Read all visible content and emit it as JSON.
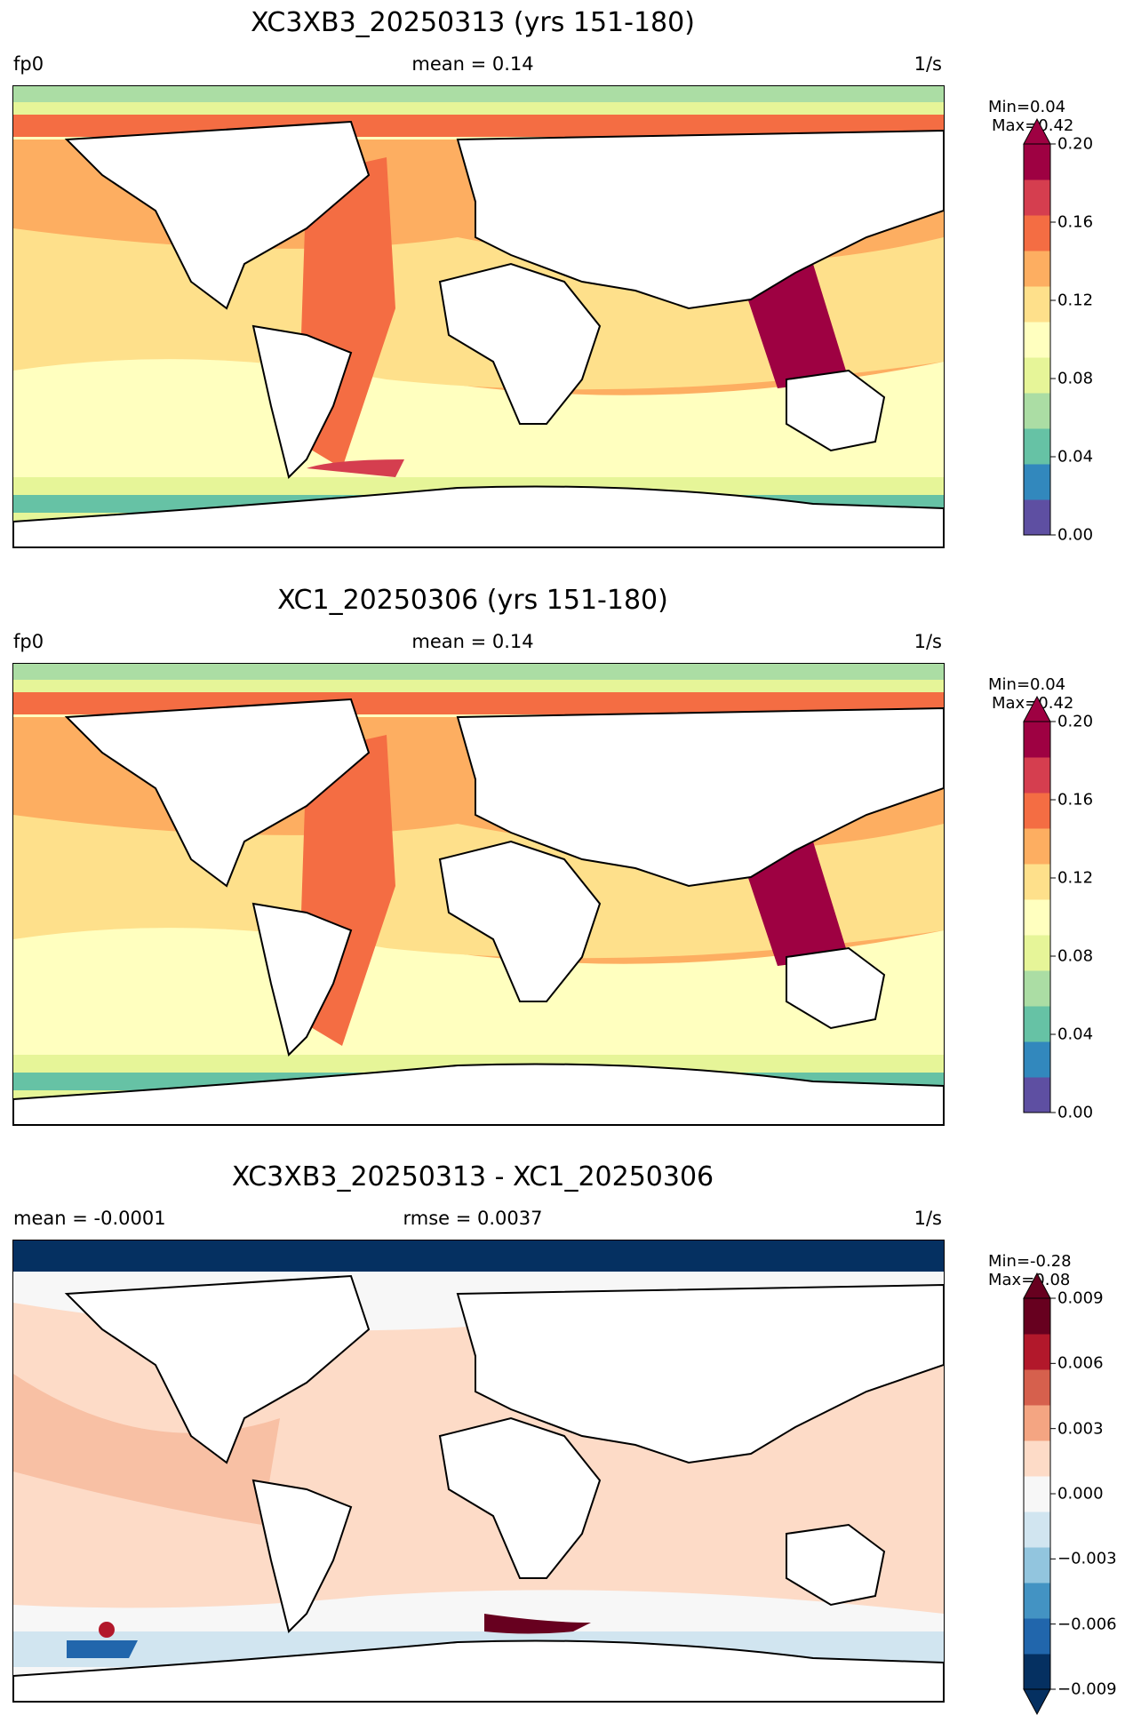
{
  "panels": [
    {
      "title": "XC3XB3_20250313 (yrs 151-180)",
      "left": "fp0",
      "center": "mean = 0.14",
      "right": "1/s",
      "stats": {
        "min": "Min=0.04",
        "max": "Max=0.42"
      },
      "colorbar": {
        "ticks": [
          "0.20",
          "0.16",
          "0.12",
          "0.08",
          "0.04",
          "0.00"
        ],
        "colors": [
          "#5e4fa2",
          "#3288bd",
          "#66c2a5",
          "#abdda4",
          "#e6f598",
          "#ffffbf",
          "#fee08b",
          "#fdae61",
          "#f46d43",
          "#d53e4f",
          "#9e0142"
        ],
        "extend": "max"
      }
    },
    {
      "title": "XC1_20250306 (yrs 151-180)",
      "left": "fp0",
      "center": "mean = 0.14",
      "right": "1/s",
      "stats": {
        "min": "Min=0.04",
        "max": "Max=0.42"
      },
      "colorbar": {
        "ticks": [
          "0.20",
          "0.16",
          "0.12",
          "0.08",
          "0.04",
          "0.00"
        ],
        "colors": [
          "#5e4fa2",
          "#3288bd",
          "#66c2a5",
          "#abdda4",
          "#e6f598",
          "#ffffbf",
          "#fee08b",
          "#fdae61",
          "#f46d43",
          "#d53e4f",
          "#9e0142"
        ],
        "extend": "max"
      }
    },
    {
      "title": "XC3XB3_20250313 - XC1_20250306",
      "left": "mean = -0.0001",
      "center": "rmse = 0.0037",
      "right": "1/s",
      "stats": {
        "min": "Min=-0.28",
        "max": "Max=0.08"
      },
      "colorbar": {
        "ticks": [
          "0.009",
          "0.006",
          "0.003",
          "0.000",
          "−0.003",
          "−0.006",
          "−0.009"
        ],
        "colors": [
          "#053061",
          "#2166ac",
          "#4393c3",
          "#92c5de",
          "#d1e5f0",
          "#f7f7f7",
          "#fddbc7",
          "#f4a582",
          "#d6604d",
          "#b2182b",
          "#67001f"
        ],
        "extend": "both"
      }
    }
  ]
}
